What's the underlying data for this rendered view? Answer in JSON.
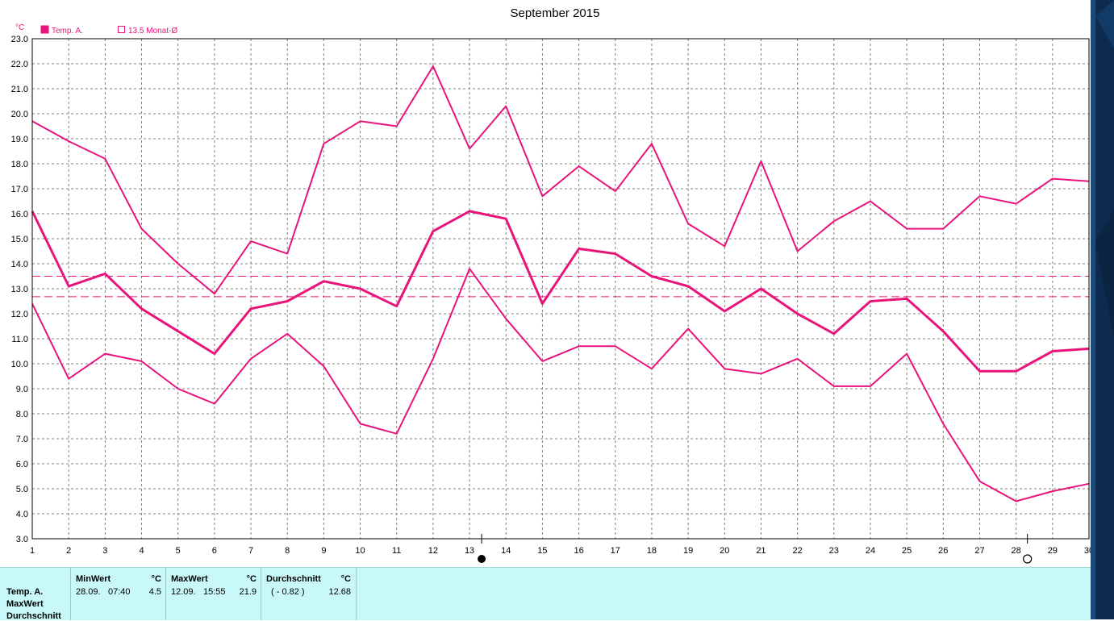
{
  "chart_data": {
    "type": "line",
    "title": "September 2015",
    "y_unit": "°C",
    "ylim": [
      3.0,
      23.0
    ],
    "y_ticks": [
      "3.0",
      "4.0",
      "5.0",
      "6.0",
      "7.0",
      "8.0",
      "9.0",
      "10.0",
      "11.0",
      "12.0",
      "13.0",
      "14.0",
      "15.0",
      "16.0",
      "17.0",
      "18.0",
      "19.0",
      "20.0",
      "21.0",
      "22.0",
      "23.0"
    ],
    "x": [
      1,
      2,
      3,
      4,
      5,
      6,
      7,
      8,
      9,
      10,
      11,
      12,
      13,
      14,
      15,
      16,
      17,
      18,
      19,
      20,
      21,
      22,
      23,
      24,
      25,
      26,
      27,
      28,
      29,
      30
    ],
    "grid": true,
    "legend_position": "top-left",
    "legend": [
      {
        "label": "Temp. A.",
        "filled": true
      },
      {
        "label": "13.5 Monat-Ø",
        "filled": false
      }
    ],
    "series": [
      {
        "name": "Temp. A.",
        "role": "avg",
        "color": "#e8147a",
        "values": [
          16.1,
          13.1,
          13.6,
          12.2,
          11.3,
          10.4,
          12.2,
          12.5,
          13.3,
          13.0,
          12.3,
          15.3,
          16.1,
          15.8,
          12.4,
          14.6,
          14.4,
          13.5,
          13.1,
          12.1,
          13.0,
          12.0,
          11.2,
          12.5,
          12.6,
          11.3,
          9.7,
          9.7,
          10.5,
          10.6
        ]
      },
      {
        "role": "max",
        "color": "#e8147a",
        "values": [
          19.7,
          18.9,
          18.2,
          15.4,
          14.0,
          12.8,
          14.9,
          14.4,
          18.8,
          19.7,
          19.5,
          21.9,
          18.6,
          20.3,
          16.7,
          17.9,
          16.9,
          18.8,
          15.6,
          14.7,
          18.1,
          14.5,
          15.7,
          16.5,
          15.4,
          15.4,
          16.7,
          16.4,
          17.4,
          17.3
        ]
      },
      {
        "role": "min",
        "color": "#e8147a",
        "values": [
          12.4,
          9.4,
          10.4,
          10.1,
          9.0,
          8.4,
          10.2,
          11.2,
          9.9,
          7.6,
          7.2,
          10.2,
          13.8,
          11.8,
          10.1,
          10.7,
          10.7,
          9.8,
          11.4,
          9.8,
          9.6,
          10.2,
          9.1,
          9.1,
          10.4,
          7.6,
          5.3,
          4.5,
          4.9,
          5.2
        ]
      }
    ],
    "reference_lines": [
      {
        "label": "13.5 Monat-Ø",
        "value": 13.5
      },
      {
        "value": 12.68
      }
    ],
    "moon_markers": [
      {
        "day": 13,
        "phase": "new"
      },
      {
        "day": 28,
        "phase": "full"
      }
    ]
  },
  "colors": {
    "series": "#e8147a",
    "grid": "#808080",
    "panel_bg": "#c8f8f8"
  },
  "stats": {
    "row_labels": [
      "Temp. A.",
      "MaxWert",
      "Durchschnitt"
    ],
    "min": {
      "header": "MinWert",
      "unit": "°C",
      "date": "28.09.",
      "time": "07:40",
      "value": "4.5"
    },
    "max": {
      "header": "MaxWert",
      "unit": "°C",
      "date": "12.09.",
      "time": "15:55",
      "value": "21.9"
    },
    "avg": {
      "header": "Durchschnitt",
      "unit": "°C",
      "delta": "( - 0.82 )",
      "value": "12.68"
    }
  }
}
